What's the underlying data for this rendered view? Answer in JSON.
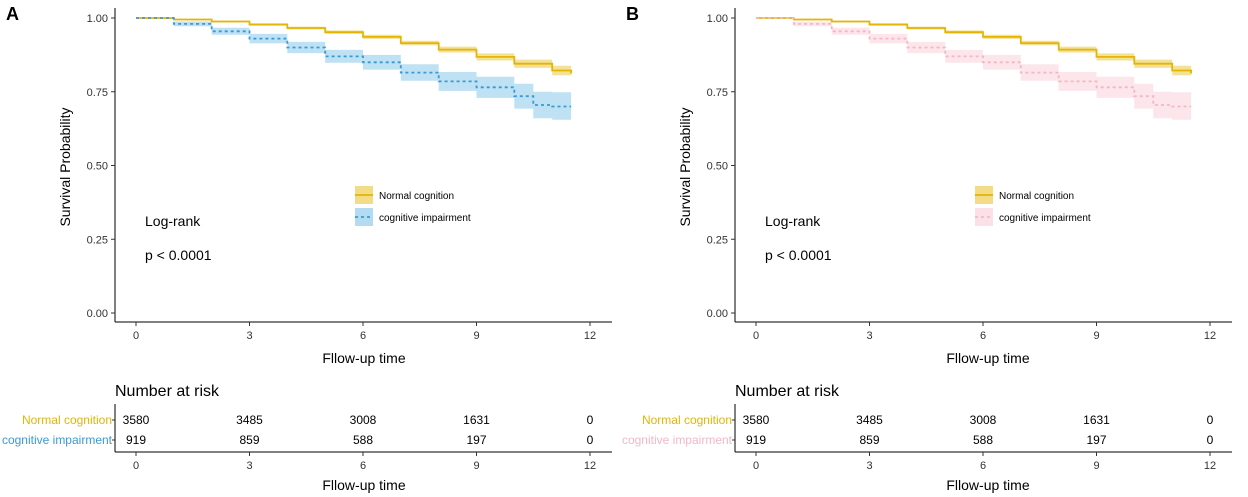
{
  "chart_data": [
    {
      "type": "line",
      "panel_label": "A",
      "title": "",
      "xlabel": "Fllow-up time",
      "ylabel": "Survival Probability",
      "xlim": [
        0,
        12
      ],
      "ylim": [
        0,
        1
      ],
      "x_ticks": [
        "0",
        "3",
        "6",
        "9",
        "12"
      ],
      "y_ticks": [
        "0.00",
        "0.25",
        "0.50",
        "0.75",
        "1.00"
      ],
      "annotation": {
        "line1": "Log-rank",
        "line2": "p < 0.0001"
      },
      "legend_position": "center-right",
      "series": [
        {
          "name": "Normal cognition",
          "color": "#E3B505",
          "band_color": "#F2DC86",
          "x": [
            0,
            1,
            2,
            3,
            4,
            5,
            6,
            7,
            8,
            9,
            10,
            11,
            11.5
          ],
          "values": [
            1.0,
            0.995,
            0.988,
            0.978,
            0.966,
            0.952,
            0.936,
            0.915,
            0.893,
            0.868,
            0.845,
            0.822,
            0.812
          ],
          "lower": [
            1.0,
            0.993,
            0.985,
            0.974,
            0.961,
            0.946,
            0.929,
            0.907,
            0.883,
            0.856,
            0.831,
            0.806,
            0.795
          ],
          "upper": [
            1.0,
            0.997,
            0.991,
            0.982,
            0.971,
            0.958,
            0.943,
            0.923,
            0.903,
            0.88,
            0.859,
            0.838,
            0.829
          ]
        },
        {
          "name": "cognitive impairment",
          "color": "#3A9AD4",
          "band_color": "#B3DCF2",
          "x": [
            0,
            1,
            2,
            3,
            4,
            5,
            6,
            7,
            8,
            9,
            10,
            10.5,
            11,
            11.5
          ],
          "values": [
            1.0,
            0.98,
            0.955,
            0.93,
            0.9,
            0.87,
            0.85,
            0.815,
            0.785,
            0.765,
            0.735,
            0.705,
            0.7,
            0.7
          ],
          "lower": [
            1.0,
            0.972,
            0.943,
            0.914,
            0.881,
            0.848,
            0.825,
            0.787,
            0.753,
            0.729,
            0.693,
            0.66,
            0.655,
            0.655
          ],
          "upper": [
            1.0,
            0.988,
            0.967,
            0.946,
            0.919,
            0.892,
            0.875,
            0.843,
            0.817,
            0.801,
            0.777,
            0.75,
            0.748,
            0.748
          ]
        }
      ],
      "risk_table": {
        "title": "Number at risk",
        "xlabel": "Fllow-up time",
        "times": [
          "0",
          "3",
          "6",
          "9",
          "12"
        ],
        "rows": [
          {
            "group": "Normal cognition",
            "color": "#E3B505",
            "counts": [
              "3580",
              "3485",
              "3008",
              "1631",
              "0"
            ]
          },
          {
            "group": "cognitive impairment",
            "color": "#3A9AD4",
            "counts": [
              "919",
              "859",
              "588",
              "197",
              "0"
            ]
          }
        ]
      }
    },
    {
      "type": "line",
      "panel_label": "B",
      "title": "",
      "xlabel": "Fllow-up time",
      "ylabel": "Survival Probability",
      "xlim": [
        0,
        12
      ],
      "ylim": [
        0,
        1
      ],
      "x_ticks": [
        "0",
        "3",
        "6",
        "9",
        "12"
      ],
      "y_ticks": [
        "0.00",
        "0.25",
        "0.50",
        "0.75",
        "1.00"
      ],
      "annotation": {
        "line1": "Log-rank",
        "line2": "p < 0.0001"
      },
      "legend_position": "center-right",
      "series": [
        {
          "name": "Normal cognition",
          "color": "#E3B505",
          "band_color": "#F2DC86",
          "x": [
            0,
            1,
            2,
            3,
            4,
            5,
            6,
            7,
            8,
            9,
            10,
            11,
            11.5
          ],
          "values": [
            1.0,
            0.995,
            0.988,
            0.978,
            0.966,
            0.952,
            0.936,
            0.915,
            0.893,
            0.868,
            0.845,
            0.822,
            0.812
          ],
          "lower": [
            1.0,
            0.993,
            0.985,
            0.974,
            0.961,
            0.946,
            0.929,
            0.907,
            0.883,
            0.856,
            0.831,
            0.806,
            0.795
          ],
          "upper": [
            1.0,
            0.997,
            0.991,
            0.982,
            0.971,
            0.958,
            0.943,
            0.923,
            0.903,
            0.88,
            0.859,
            0.838,
            0.829
          ]
        },
        {
          "name": "cognitive impairment",
          "color": "#F2B8C6",
          "band_color": "#FBE0E7",
          "x": [
            0,
            1,
            2,
            3,
            4,
            5,
            6,
            7,
            8,
            9,
            10,
            10.5,
            11,
            11.5
          ],
          "values": [
            1.0,
            0.98,
            0.955,
            0.93,
            0.9,
            0.87,
            0.85,
            0.815,
            0.785,
            0.765,
            0.735,
            0.705,
            0.7,
            0.7
          ],
          "lower": [
            1.0,
            0.972,
            0.943,
            0.914,
            0.881,
            0.848,
            0.825,
            0.787,
            0.753,
            0.729,
            0.693,
            0.66,
            0.655,
            0.655
          ],
          "upper": [
            1.0,
            0.988,
            0.967,
            0.946,
            0.919,
            0.892,
            0.875,
            0.843,
            0.817,
            0.801,
            0.777,
            0.75,
            0.748,
            0.748
          ]
        }
      ],
      "risk_table": {
        "title": "Number at risk",
        "xlabel": "Fllow-up time",
        "times": [
          "0",
          "3",
          "6",
          "9",
          "12"
        ],
        "rows": [
          {
            "group": "Normal cognition",
            "color": "#E3B505",
            "counts": [
              "3580",
              "3485",
              "3008",
              "1631",
              "0"
            ]
          },
          {
            "group": "cognitive impairment",
            "color": "#F2B8C6",
            "counts": [
              "919",
              "859",
              "588",
              "197",
              "0"
            ]
          }
        ]
      }
    }
  ]
}
